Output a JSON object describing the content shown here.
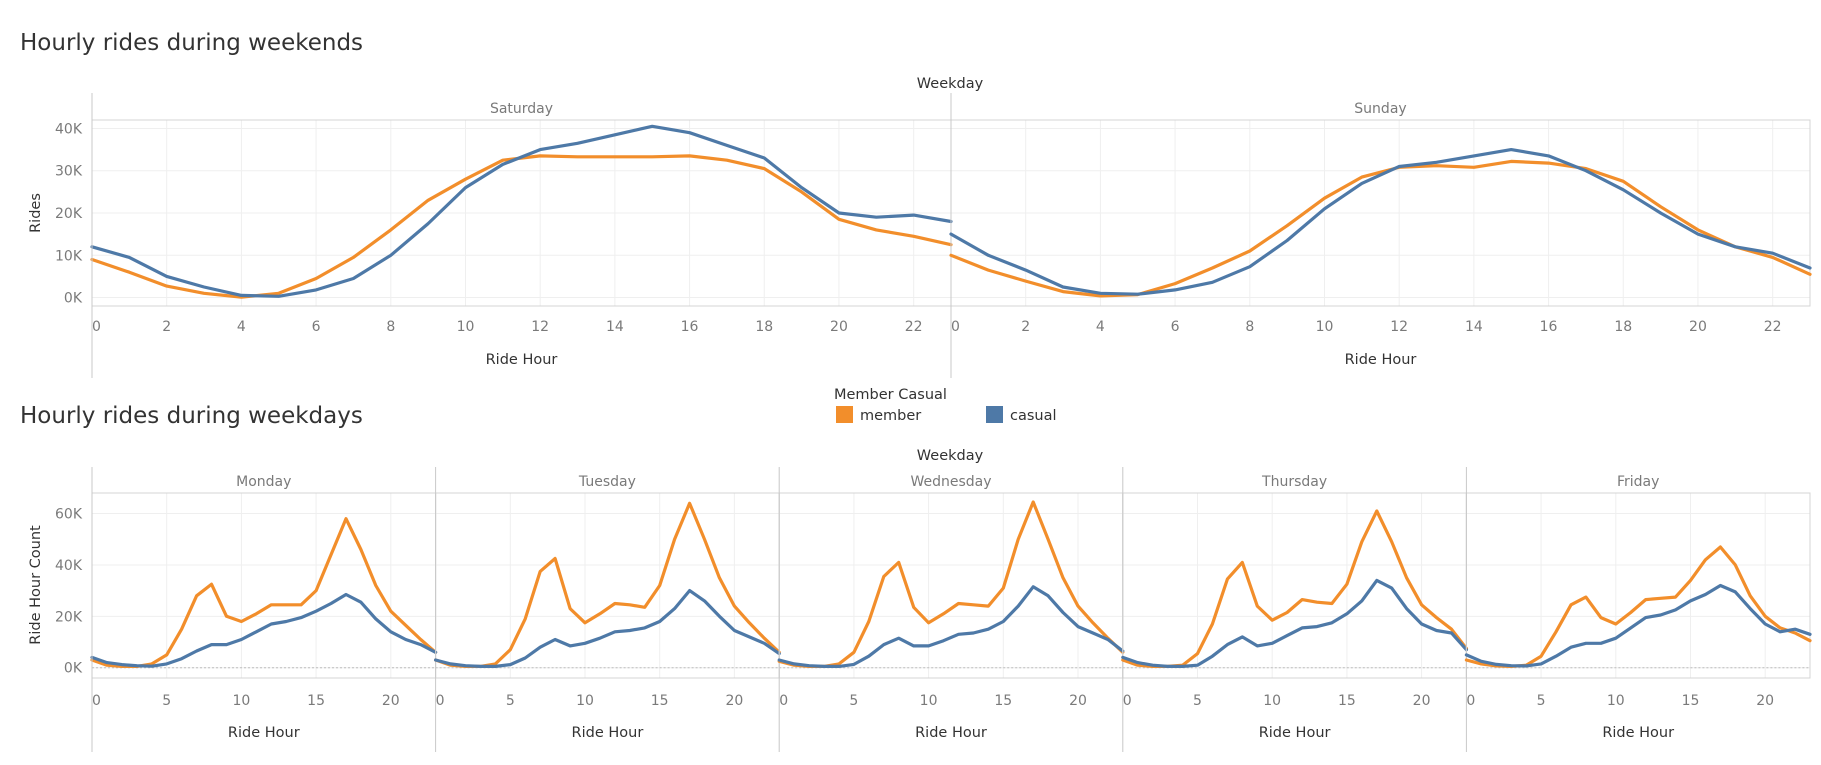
{
  "colors": {
    "member": "#f28e2b",
    "casual": "#4e79a7",
    "grid": "#efefef",
    "border": "#d4d4d4"
  },
  "legend": {
    "title": "Member Casual",
    "items": [
      {
        "name": "member",
        "color": "#f28e2b"
      },
      {
        "name": "casual",
        "color": "#4e79a7"
      }
    ]
  },
  "chart_data": [
    {
      "type": "line",
      "title": "Hourly rides during weekends",
      "column_header": "Weekday",
      "xlabel": "Ride Hour",
      "ylabel": "Rides",
      "xlim": [
        0,
        23
      ],
      "ylim": [
        -2000,
        42000
      ],
      "yticks": [
        0,
        10000,
        20000,
        30000,
        40000
      ],
      "ytick_labels": [
        "0K",
        "10K",
        "20K",
        "30K",
        "40K"
      ],
      "xticks": [
        0,
        2,
        4,
        6,
        8,
        10,
        12,
        14,
        16,
        18,
        20,
        22
      ],
      "xtick_labels": [
        "0",
        "2",
        "4",
        "6",
        "8",
        "10",
        "12",
        "14",
        "16",
        "18",
        "20",
        "22"
      ],
      "x": [
        0,
        1,
        2,
        3,
        4,
        5,
        6,
        7,
        8,
        9,
        10,
        11,
        12,
        13,
        14,
        15,
        16,
        17,
        18,
        19,
        20,
        21,
        22,
        23
      ],
      "panels": [
        {
          "name": "Saturday",
          "series": [
            {
              "name": "member",
              "values": [
                9000,
                6000,
                2700,
                1000,
                100,
                1000,
                4500,
                9500,
                16000,
                23000,
                28000,
                32500,
                33500,
                33300,
                33300,
                33300,
                33500,
                32500,
                30500,
                25000,
                18500,
                16000,
                14500,
                12500
              ]
            },
            {
              "name": "casual",
              "values": [
                12000,
                9500,
                5000,
                2500,
                500,
                300,
                1800,
                4500,
                10000,
                17500,
                26000,
                31500,
                35000,
                36500,
                38500,
                40500,
                39000,
                36000,
                33000,
                26000,
                20000,
                19000,
                19500,
                18000
              ]
            }
          ]
        },
        {
          "name": "Sunday",
          "series": [
            {
              "name": "member",
              "values": [
                10000,
                6500,
                3900,
                1400,
                400,
                700,
                3300,
                7000,
                11000,
                17000,
                23500,
                28500,
                30800,
                31200,
                30800,
                32200,
                31800,
                30500,
                27500,
                21500,
                16000,
                12000,
                9500,
                5500
              ]
            },
            {
              "name": "casual",
              "values": [
                15000,
                10000,
                6500,
                2500,
                1000,
                800,
                1800,
                3600,
                7300,
                13500,
                21000,
                27000,
                31000,
                32000,
                33500,
                35000,
                33500,
                30000,
                25500,
                20000,
                15000,
                12000,
                10500,
                7000
              ]
            }
          ]
        }
      ]
    },
    {
      "type": "line",
      "title": "Hourly rides during weekdays",
      "column_header": "Weekday",
      "xlabel": "Ride Hour",
      "ylabel": "Ride Hour Count",
      "xlim": [
        0,
        23
      ],
      "ylim": [
        -4000,
        68000
      ],
      "yticks": [
        0,
        20000,
        40000,
        60000
      ],
      "ytick_labels": [
        "0K",
        "20K",
        "40K",
        "60K"
      ],
      "xticks": [
        0,
        5,
        10,
        15,
        20
      ],
      "xtick_labels": [
        "0",
        "5",
        "10",
        "15",
        "20"
      ],
      "x": [
        0,
        1,
        2,
        3,
        4,
        5,
        6,
        7,
        8,
        9,
        10,
        11,
        12,
        13,
        14,
        15,
        16,
        17,
        18,
        19,
        20,
        21,
        22,
        23
      ],
      "panels": [
        {
          "name": "Monday",
          "series": [
            {
              "name": "member",
              "values": [
                3000,
                1000,
                500,
                500,
                1500,
                5000,
                15000,
                28000,
                32500,
                20000,
                18000,
                21000,
                24500,
                24500,
                24500,
                30000,
                44000,
                58000,
                46000,
                32000,
                22000,
                16500,
                11000,
                6000
              ]
            },
            {
              "name": "casual",
              "values": [
                4000,
                2000,
                1200,
                800,
                600,
                1500,
                3500,
                6500,
                9000,
                9000,
                11000,
                14000,
                17000,
                18000,
                19500,
                22000,
                25000,
                28500,
                25500,
                19000,
                14000,
                11000,
                9000,
                6000
              ]
            }
          ]
        },
        {
          "name": "Tuesday",
          "series": [
            {
              "name": "member",
              "values": [
                3000,
                1000,
                500,
                500,
                1500,
                7000,
                19000,
                37500,
                42500,
                23000,
                17500,
                21000,
                25000,
                24500,
                23500,
                32000,
                50000,
                64000,
                50000,
                35000,
                24000,
                17500,
                11500,
                6000
              ]
            },
            {
              "name": "casual",
              "values": [
                3000,
                1500,
                800,
                500,
                500,
                1200,
                3800,
                8000,
                11000,
                8500,
                9500,
                11500,
                14000,
                14500,
                15500,
                18000,
                23000,
                30000,
                26000,
                20000,
                14500,
                12000,
                9500,
                5500
              ]
            }
          ]
        },
        {
          "name": "Wednesday",
          "series": [
            {
              "name": "member",
              "values": [
                2500,
                1000,
                500,
                500,
                1500,
                6000,
                18000,
                35500,
                41000,
                23500,
                17500,
                21000,
                25000,
                24500,
                24000,
                31000,
                50000,
                64500,
                50000,
                35000,
                24000,
                17500,
                11500,
                6000
              ]
            },
            {
              "name": "casual",
              "values": [
                3000,
                1500,
                800,
                500,
                500,
                1300,
                4500,
                9000,
                11500,
                8500,
                8500,
                10500,
                13000,
                13500,
                15000,
                18000,
                24000,
                31500,
                28000,
                21500,
                16000,
                13500,
                11000,
                6500
              ]
            }
          ]
        },
        {
          "name": "Thursday",
          "series": [
            {
              "name": "member",
              "values": [
                3000,
                1000,
                500,
                500,
                1000,
                5500,
                17000,
                34500,
                41000,
                24000,
                18500,
                21500,
                26500,
                25500,
                25000,
                32500,
                49000,
                61000,
                49000,
                35000,
                24500,
                19500,
                15000,
                7500
              ]
            },
            {
              "name": "casual",
              "values": [
                4000,
                2000,
                1000,
                500,
                500,
                1000,
                4500,
                9000,
                12000,
                8500,
                9500,
                12500,
                15500,
                16000,
                17500,
                21000,
                26000,
                34000,
                31000,
                23000,
                17000,
                14500,
                13500,
                7000
              ]
            }
          ]
        },
        {
          "name": "Friday",
          "series": [
            {
              "name": "member",
              "values": [
                3000,
                1500,
                700,
                500,
                1000,
                4500,
                14000,
                24500,
                27500,
                19500,
                17000,
                21500,
                26500,
                27000,
                27500,
                34000,
                42000,
                47000,
                40000,
                28000,
                20000,
                15500,
                13500,
                10500
              ]
            },
            {
              "name": "casual",
              "values": [
                5000,
                2500,
                1300,
                800,
                700,
                1500,
                4500,
                8000,
                9500,
                9500,
                11500,
                15500,
                19500,
                20500,
                22500,
                26000,
                28500,
                32000,
                29500,
                23000,
                17000,
                14000,
                15000,
                13000
              ]
            }
          ]
        }
      ]
    }
  ]
}
